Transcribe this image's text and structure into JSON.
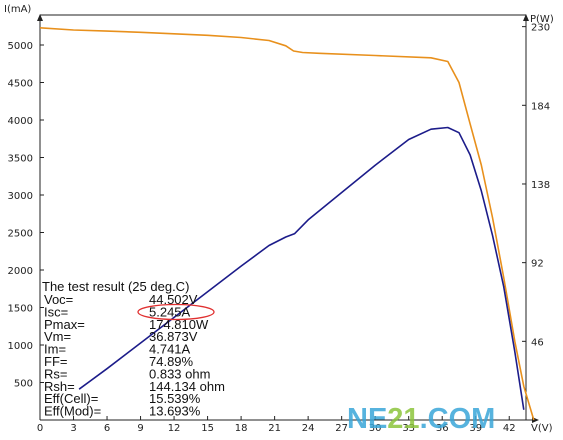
{
  "chart_data": {
    "type": "line",
    "xlabel": "V(V)",
    "ylabel": "I(mA)",
    "y2label": "P(W)",
    "xlim": [
      0,
      43.5
    ],
    "ylim": [
      0,
      5400
    ],
    "y2lim": [
      0,
      236.8
    ],
    "x_ticks": [
      "0",
      "3",
      "6",
      "9",
      "12",
      "15",
      "18",
      "21",
      "24",
      "27",
      "30",
      "33",
      "36",
      "39",
      "42"
    ],
    "y_ticks": [
      "500",
      "1000",
      "1500",
      "2000",
      "2500",
      "3000",
      "3500",
      "4000",
      "4500",
      "5000"
    ],
    "y2_ticks": [
      "46",
      "92",
      "138",
      "184",
      "230"
    ],
    "series": [
      {
        "axis": "left",
        "color": "#e8901c",
        "x": [
          0,
          3,
          6,
          9,
          12,
          15,
          18,
          20.5,
          22,
          22.7,
          23.5,
          25,
          30,
          35,
          36.5,
          37.5,
          38.5,
          39.5,
          40.5,
          41.5,
          42.5,
          43.3,
          44.2
        ],
        "y": [
          5230,
          5200,
          5185,
          5170,
          5150,
          5130,
          5100,
          5060,
          4990,
          4920,
          4900,
          4890,
          4860,
          4830,
          4780,
          4500,
          3950,
          3400,
          2700,
          1900,
          1050,
          450,
          0
        ]
      },
      {
        "axis": "right",
        "color": "#1c1c8a",
        "x": [
          3.5,
          6,
          9,
          12,
          15,
          18,
          20.5,
          22,
          22.8,
          24,
          27,
          30,
          33,
          35,
          36.5,
          37.5,
          38.5,
          39.5,
          40.5,
          41.5,
          42.5,
          43.3
        ],
        "y": [
          18,
          30,
          45,
          60,
          75,
          90,
          102,
          107,
          109,
          117,
          133,
          149,
          164,
          170,
          171,
          168,
          155,
          134,
          108,
          78,
          40,
          6
        ]
      }
    ],
    "result": {
      "title": "The test result (25 deg.C)",
      "rows": [
        {
          "label": "Voc=",
          "value": "44.502V"
        },
        {
          "label": "Isc=",
          "value": "5.245A"
        },
        {
          "label": "Pmax=",
          "value": "174.810W"
        },
        {
          "label": "Vm=",
          "value": "36.873V"
        },
        {
          "label": "Im=",
          "value": "4.741A"
        },
        {
          "label": "FF=",
          "value": "74.89%"
        },
        {
          "label": "Rs=",
          "value": "0.833 ohm"
        },
        {
          "label": "Rsh=",
          "value": "144.134 ohm"
        },
        {
          "label": "Eff(Cell)=",
          "value": "15.539%"
        },
        {
          "label": "Eff(Mod)=",
          "value": "13.693%"
        }
      ]
    }
  },
  "colors": {
    "axis": "#222222",
    "highlight_ellipse": "#e03030",
    "watermark_primary": "#3aa6d8",
    "watermark_accent": "#8cc43c"
  },
  "watermark": {
    "part1": "NE",
    "part2": "21",
    "part3": ".COM"
  }
}
